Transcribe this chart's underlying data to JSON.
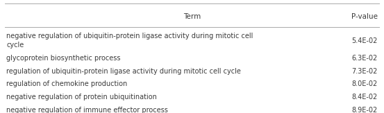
{
  "header": [
    "Term",
    "P-value"
  ],
  "rows": [
    [
      "negative regulation of ubiquitin-protein ligase activity during mitotic cell\ncycle",
      "5.4E-02"
    ],
    [
      "glycoprotein biosynthetic process",
      "6.3E-02"
    ],
    [
      "regulation of ubiquitin-protein ligase activity during mitotic cell cycle",
      "7.3E-02"
    ],
    [
      "regulation of chemokine production",
      "8.0E-02"
    ],
    [
      "negative regulation of protein ubiquitination",
      "8.4E-02"
    ],
    [
      "negative regulation of immune effector process",
      "8.9E-02"
    ]
  ],
  "bg_color": "#ffffff",
  "text_color": "#3a3a3a",
  "header_fontsize": 7.5,
  "row_fontsize": 7.0,
  "line_color": "#aaaaaa",
  "fig_width": 5.53,
  "fig_height": 1.63,
  "dpi": 100
}
